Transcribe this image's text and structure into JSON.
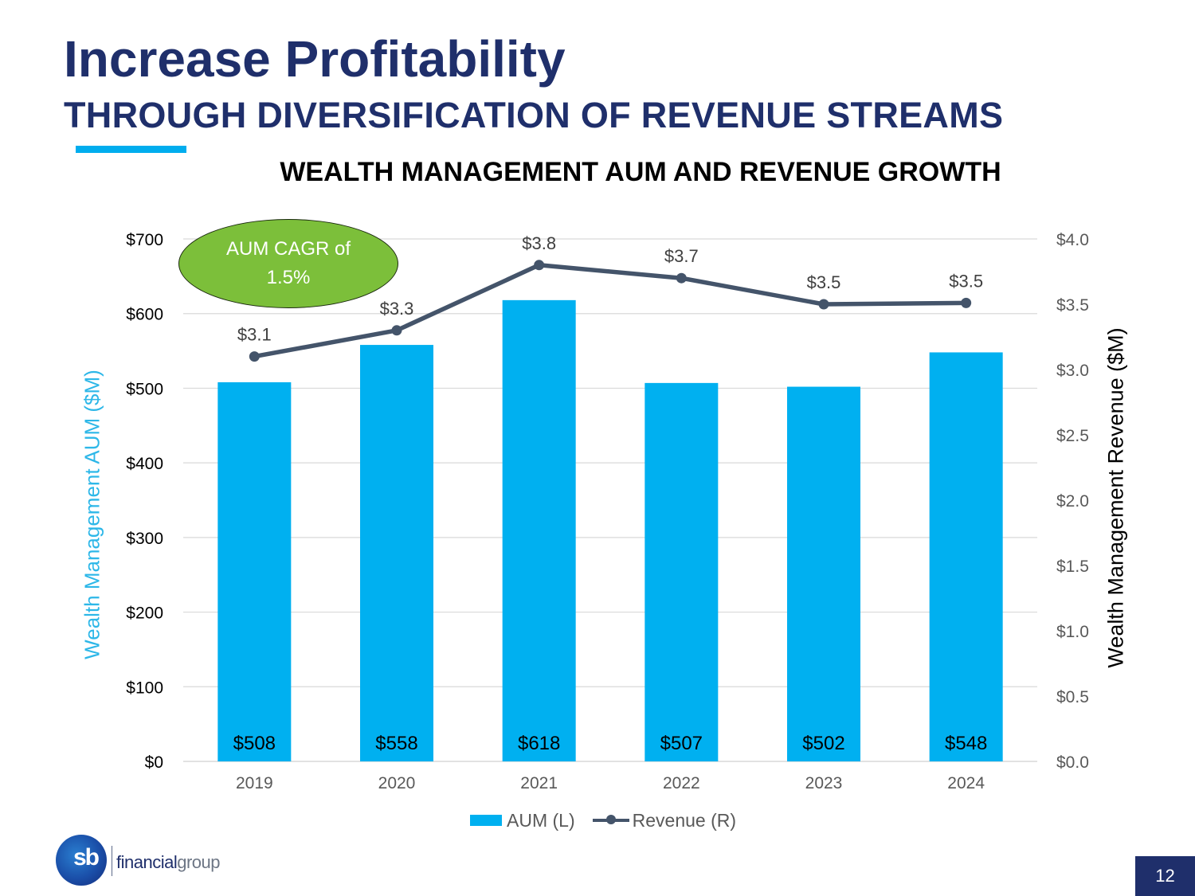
{
  "header": {
    "title": "Increase Profitability",
    "subtitle": "THROUGH DIVERSIFICATION OF REVENUE STREAMS"
  },
  "annotation": {
    "cagr_text": "AUM CAGR of 1.5%"
  },
  "legend": {
    "aum_label": "AUM (L)",
    "revenue_label": "Revenue (R)"
  },
  "footer": {
    "logo_text_bold": "financial",
    "logo_text_light": "group",
    "logo_mark": "sb",
    "page_number": "12"
  },
  "colors": {
    "title": "#1f2f6b",
    "accent": "#00adee",
    "bars": "#00b0f0",
    "line": "#44546a",
    "ellipse": "#7cbf3a"
  },
  "chart_data": {
    "type": "bar",
    "title": "WEALTH MANAGEMENT AUM AND REVENUE GROWTH",
    "categories": [
      "2019",
      "2020",
      "2021",
      "2022",
      "2023",
      "2024"
    ],
    "series": [
      {
        "name": "AUM (L)",
        "type": "bar",
        "axis": "left",
        "values": [
          508,
          558,
          618,
          507,
          502,
          548
        ],
        "labels": [
          "$508",
          "$558",
          "$618",
          "$507",
          "$502",
          "$548"
        ]
      },
      {
        "name": "Revenue (R)",
        "type": "line",
        "axis": "right",
        "values": [
          3.1,
          3.3,
          3.8,
          3.7,
          3.5,
          3.51
        ],
        "labels": [
          "$3.1",
          "$3.3",
          "$3.8",
          "$3.7",
          "$3.5",
          "$3.5"
        ]
      }
    ],
    "ylabel": "Wealth Management AUM ($M)",
    "y2label": "Wealth Management Revenue ($M)",
    "ylim": [
      0,
      700
    ],
    "y2lim": [
      0,
      4
    ],
    "yticks": [
      "$0",
      "$100",
      "$200",
      "$300",
      "$400",
      "$500",
      "$600",
      "$700"
    ],
    "y2ticks": [
      "$0.0",
      "$0.5",
      "$1.0",
      "$1.5",
      "$2.0",
      "$2.5",
      "$3.0",
      "$3.5",
      "$4.0"
    ],
    "grid": true,
    "legend_position": "bottom"
  }
}
